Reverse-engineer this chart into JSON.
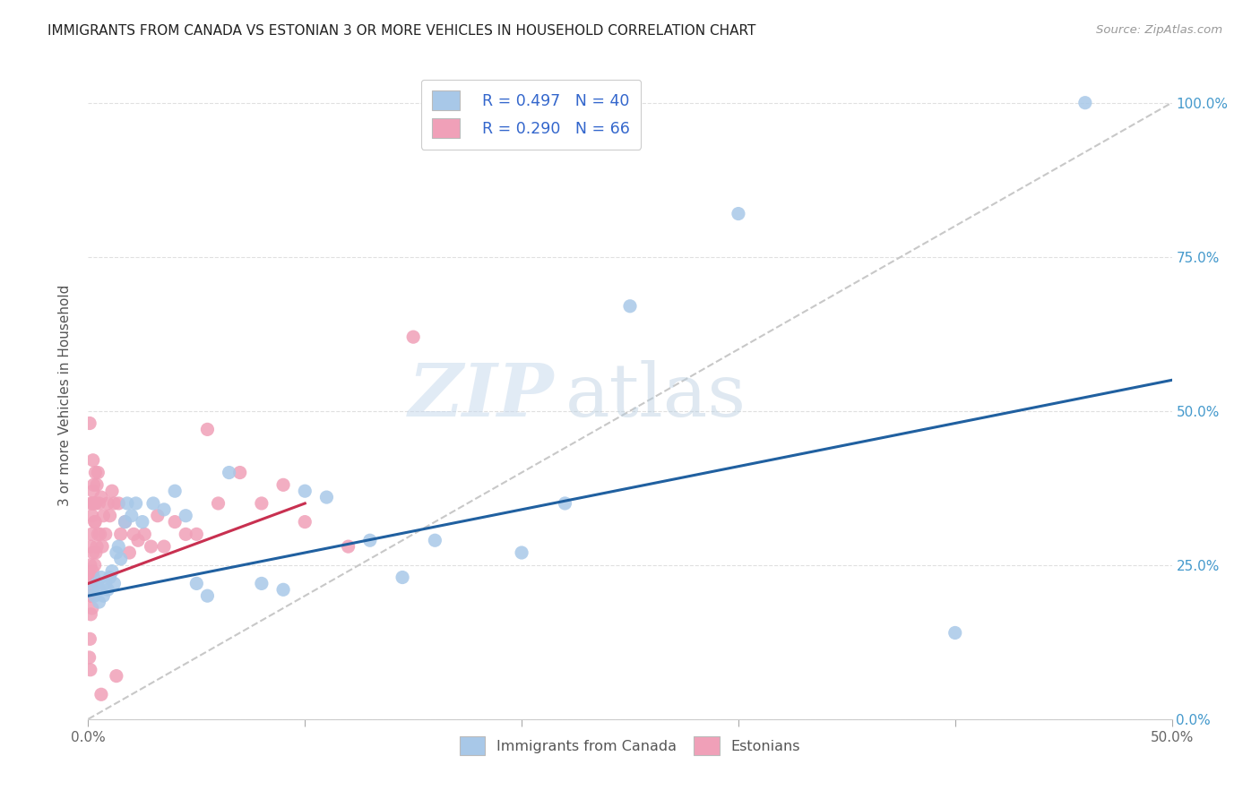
{
  "title": "IMMIGRANTS FROM CANADA VS ESTONIAN 3 OR MORE VEHICLES IN HOUSEHOLD CORRELATION CHART",
  "source": "Source: ZipAtlas.com",
  "ylabel": "3 or more Vehicles in Household",
  "ytick_vals": [
    0,
    25,
    50,
    75,
    100
  ],
  "xlim": [
    0,
    50
  ],
  "ylim": [
    0,
    105
  ],
  "legend_blue_label": "Immigrants from Canada",
  "legend_pink_label": "Estonians",
  "legend_r_blue": "R = 0.497",
  "legend_n_blue": "N = 40",
  "legend_r_pink": "R = 0.290",
  "legend_n_pink": "N = 66",
  "blue_color": "#a8c8e8",
  "blue_line_color": "#2060a0",
  "pink_color": "#f0a0b8",
  "pink_line_color": "#c83050",
  "dashed_line_color": "#c8c8c8",
  "blue_scatter_x": [
    0.2,
    0.3,
    0.4,
    0.5,
    0.5,
    0.6,
    0.7,
    0.8,
    0.9,
    1.0,
    1.1,
    1.2,
    1.3,
    1.4,
    1.5,
    1.7,
    1.8,
    2.0,
    2.2,
    2.5,
    3.0,
    3.5,
    4.0,
    4.5,
    5.0,
    5.5,
    6.5,
    8.0,
    9.0,
    10.0,
    11.0,
    13.0,
    14.5,
    16.0,
    20.0,
    22.0,
    25.0,
    30.0,
    40.0,
    46.0
  ],
  "blue_scatter_y": [
    21,
    20,
    22,
    21,
    19,
    23,
    20,
    22,
    21,
    23,
    24,
    22,
    27,
    28,
    26,
    32,
    35,
    33,
    35,
    32,
    35,
    34,
    37,
    33,
    22,
    20,
    40,
    22,
    21,
    37,
    36,
    29,
    23,
    29,
    27,
    35,
    67,
    82,
    14,
    100
  ],
  "pink_scatter_x": [
    0.05,
    0.05,
    0.08,
    0.08,
    0.1,
    0.1,
    0.1,
    0.12,
    0.12,
    0.15,
    0.15,
    0.18,
    0.18,
    0.2,
    0.2,
    0.22,
    0.22,
    0.25,
    0.25,
    0.28,
    0.3,
    0.3,
    0.33,
    0.35,
    0.35,
    0.4,
    0.4,
    0.45,
    0.45,
    0.5,
    0.55,
    0.6,
    0.65,
    0.7,
    0.8,
    0.9,
    1.0,
    1.1,
    1.2,
    1.4,
    1.5,
    1.7,
    1.9,
    2.1,
    2.3,
    2.6,
    2.9,
    3.2,
    3.5,
    4.0,
    4.5,
    5.0,
    5.5,
    6.0,
    7.0,
    8.0,
    9.0,
    10.0,
    12.0,
    15.0,
    0.07,
    0.13,
    0.22,
    0.32,
    0.6,
    1.3
  ],
  "pink_scatter_y": [
    20,
    10,
    23,
    13,
    25,
    20,
    8,
    28,
    17,
    30,
    22,
    33,
    18,
    35,
    24,
    37,
    27,
    38,
    23,
    35,
    32,
    25,
    40,
    35,
    27,
    38,
    28,
    40,
    30,
    35,
    30,
    36,
    28,
    33,
    30,
    35,
    33,
    37,
    35,
    35,
    30,
    32,
    27,
    30,
    29,
    30,
    28,
    33,
    28,
    32,
    30,
    30,
    47,
    35,
    40,
    35,
    38,
    32,
    28,
    62,
    48,
    35,
    42,
    32,
    4,
    7
  ],
  "watermark_zip": "ZIP",
  "watermark_atlas": "atlas",
  "background_color": "#ffffff",
  "grid_color": "#e0e0e0",
  "blue_line_x0": 0,
  "blue_line_y0": 20,
  "blue_line_x1": 50,
  "blue_line_y1": 55,
  "pink_line_x0": 0,
  "pink_line_y0": 22,
  "pink_line_x1": 10,
  "pink_line_y1": 35
}
